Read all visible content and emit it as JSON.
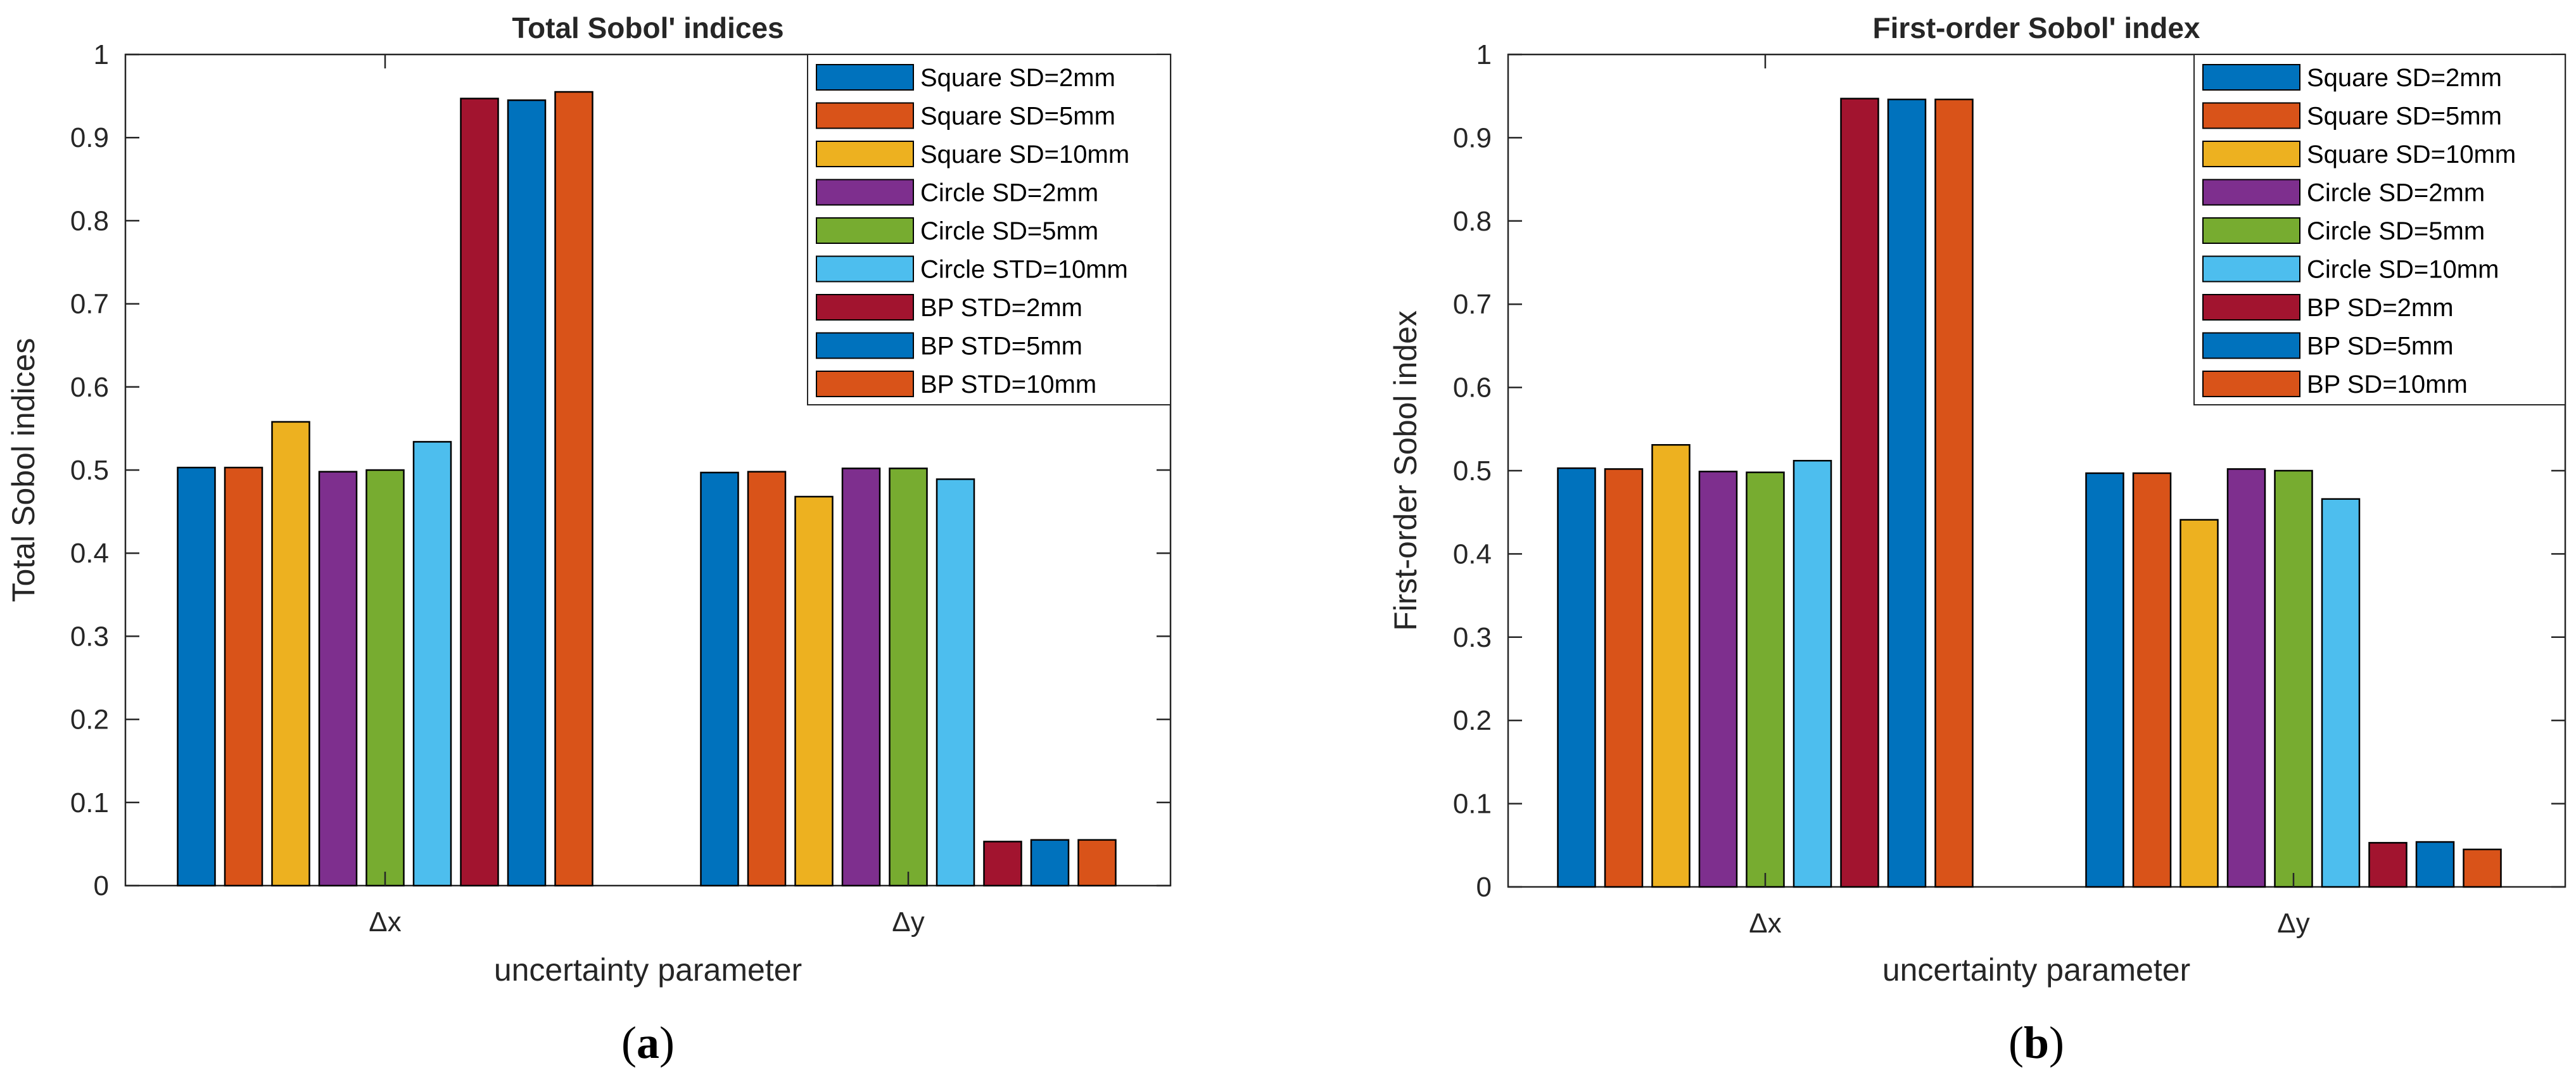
{
  "chart_data": [
    {
      "type": "bar",
      "panel_label": "a",
      "title": "Total Sobol' indices",
      "xlabel": "uncertainty parameter",
      "ylabel": "Total Sobol indices",
      "ylim": [
        0,
        1
      ],
      "yticks": [
        "0",
        "0.1",
        "0.2",
        "0.3",
        "0.4",
        "0.5",
        "0.6",
        "0.7",
        "0.8",
        "0.9",
        "1"
      ],
      "categories": [
        "Δx",
        "Δy"
      ],
      "legend_position": "top-right",
      "series": [
        {
          "name": "Square SD=2mm",
          "color": "#0072BD",
          "values": [
            0.503,
            0.497
          ]
        },
        {
          "name": "Square SD=5mm",
          "color": "#D95319",
          "values": [
            0.503,
            0.498
          ]
        },
        {
          "name": "Square SD=10mm",
          "color": "#EDB120",
          "values": [
            0.558,
            0.468
          ]
        },
        {
          "name": "Circle SD=2mm",
          "color": "#7E2F8E",
          "values": [
            0.498,
            0.502
          ]
        },
        {
          "name": "Circle SD=5mm",
          "color": "#77AC30",
          "values": [
            0.5,
            0.502
          ]
        },
        {
          "name": "Circle STD=10mm",
          "color": "#4DBEEE",
          "values": [
            0.534,
            0.489
          ]
        },
        {
          "name": "BP STD=2mm",
          "color": "#A2142F",
          "values": [
            0.947,
            0.053
          ]
        },
        {
          "name": "BP STD=5mm",
          "color": "#0072BD",
          "values": [
            0.945,
            0.055
          ]
        },
        {
          "name": "BP STD=10mm",
          "color": "#D95319",
          "values": [
            0.955,
            0.055
          ]
        }
      ]
    },
    {
      "type": "bar",
      "panel_label": "b",
      "title": "First-order Sobol' index",
      "xlabel": "uncertainty parameter",
      "ylabel": "First-order Sobol index",
      "ylim": [
        0,
        1
      ],
      "yticks": [
        "0",
        "0.1",
        "0.2",
        "0.3",
        "0.4",
        "0.5",
        "0.6",
        "0.7",
        "0.8",
        "0.9",
        "1"
      ],
      "categories": [
        "Δx",
        "Δy"
      ],
      "legend_position": "top-right",
      "series": [
        {
          "name": "Square SD=2mm",
          "color": "#0072BD",
          "values": [
            0.503,
            0.497
          ]
        },
        {
          "name": "Square SD=5mm",
          "color": "#D95319",
          "values": [
            0.502,
            0.497
          ]
        },
        {
          "name": "Square SD=10mm",
          "color": "#EDB120",
          "values": [
            0.531,
            0.441
          ]
        },
        {
          "name": "Circle SD=2mm",
          "color": "#7E2F8E",
          "values": [
            0.499,
            0.502
          ]
        },
        {
          "name": "Circle SD=5mm",
          "color": "#77AC30",
          "values": [
            0.498,
            0.5
          ]
        },
        {
          "name": "Circle SD=10mm",
          "color": "#4DBEEE",
          "values": [
            0.512,
            0.466
          ]
        },
        {
          "name": "BP SD=2mm",
          "color": "#A2142F",
          "values": [
            0.947,
            0.053
          ]
        },
        {
          "name": "BP SD=5mm",
          "color": "#0072BD",
          "values": [
            0.946,
            0.054
          ]
        },
        {
          "name": "BP SD=10mm",
          "color": "#D95319",
          "values": [
            0.946,
            0.045
          ]
        }
      ]
    }
  ]
}
